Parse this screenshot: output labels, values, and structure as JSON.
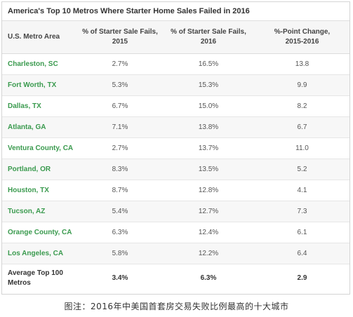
{
  "title": "America's Top 10 Metros Where Starter Home Sales Failed in 2016",
  "headers": {
    "metro": "U.S. Metro Area",
    "fail2015_line1": "% of Starter Sale Fails,",
    "fail2015_line2": "2015",
    "fail2016_line1": "% of Starter Sale Fails,",
    "fail2016_line2": "2016",
    "change_line1": "%-Point Change,",
    "change_line2": "2015-2016"
  },
  "rows": [
    {
      "metro": "Charleston, SC",
      "fail2015": "2.7%",
      "fail2016": "16.5%",
      "change": "13.8"
    },
    {
      "metro": "Fort Worth, TX",
      "fail2015": "5.3%",
      "fail2016": "15.3%",
      "change": "9.9"
    },
    {
      "metro": "Dallas, TX",
      "fail2015": "6.7%",
      "fail2016": "15.0%",
      "change": "8.2"
    },
    {
      "metro": "Atlanta, GA",
      "fail2015": "7.1%",
      "fail2016": "13.8%",
      "change": "6.7"
    },
    {
      "metro": "Ventura County, CA",
      "fail2015": "2.7%",
      "fail2016": "13.7%",
      "change": "11.0"
    },
    {
      "metro": "Portland, OR",
      "fail2015": "8.3%",
      "fail2016": "13.5%",
      "change": "5.2"
    },
    {
      "metro": "Houston, TX",
      "fail2015": "8.7%",
      "fail2016": "12.8%",
      "change": "4.1"
    },
    {
      "metro": "Tucson, AZ",
      "fail2015": "5.4%",
      "fail2016": "12.7%",
      "change": "7.3"
    },
    {
      "metro": "Orange County, CA",
      "fail2015": "6.3%",
      "fail2016": "12.4%",
      "change": "6.1"
    },
    {
      "metro": "Los Angeles, CA",
      "fail2015": "5.8%",
      "fail2016": "12.2%",
      "change": "6.4"
    }
  ],
  "footer": {
    "label_line1": "Average Top 100",
    "label_line2": "Metros",
    "fail2015": "3.4%",
    "fail2016": "6.3%",
    "change": "2.9"
  },
  "caption": "图注：2016年中美国首套房交易失败比例最高的十大城市",
  "colors": {
    "metro_text": "#3a9a4e",
    "header_bg": "#f6f6f6",
    "stripe_bg": "#f7f7f7"
  }
}
